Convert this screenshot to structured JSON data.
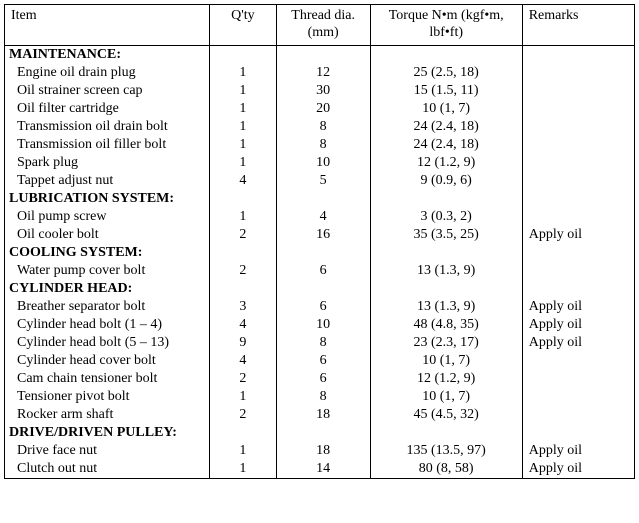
{
  "columns": {
    "item": "Item",
    "qty": "Q'ty",
    "thread": "Thread dia.\n(mm)",
    "torque": "Torque\nN•m (kgf•m, lbf•ft)",
    "remarks": "Remarks"
  },
  "sections": [
    {
      "title": "MAINTENANCE:",
      "rows": [
        {
          "item": "Engine oil drain plug",
          "qty": "1",
          "thread": "12",
          "torque": "25 (2.5, 18)",
          "remarks": ""
        },
        {
          "item": "Oil strainer screen cap",
          "qty": "1",
          "thread": "30",
          "torque": "15 (1.5, 11)",
          "remarks": ""
        },
        {
          "item": "Oil filter cartridge",
          "qty": "1",
          "thread": "20",
          "torque": "10 (1, 7)",
          "remarks": ""
        },
        {
          "item": "Transmission oil drain bolt",
          "qty": "1",
          "thread": "8",
          "torque": "24 (2.4, 18)",
          "remarks": ""
        },
        {
          "item": "Transmission oil filler bolt",
          "qty": "1",
          "thread": "8",
          "torque": "24 (2.4, 18)",
          "remarks": ""
        },
        {
          "item": "Spark plug",
          "qty": "1",
          "thread": "10",
          "torque": "12 (1.2, 9)",
          "remarks": ""
        },
        {
          "item": "Tappet adjust nut",
          "qty": "4",
          "thread": "5",
          "torque": "9 (0.9, 6)",
          "remarks": ""
        }
      ]
    },
    {
      "title": "LUBRICATION SYSTEM:",
      "rows": [
        {
          "item": "Oil pump screw",
          "qty": "1",
          "thread": "4",
          "torque": "3 (0.3, 2)",
          "remarks": ""
        },
        {
          "item": "Oil cooler bolt",
          "qty": "2",
          "thread": "16",
          "torque": "35 (3.5, 25)",
          "remarks": "Apply oil"
        }
      ]
    },
    {
      "title": "COOLING SYSTEM:",
      "rows": [
        {
          "item": "Water pump cover bolt",
          "qty": "2",
          "thread": "6",
          "torque": "13 (1.3, 9)",
          "remarks": ""
        }
      ]
    },
    {
      "title": "CYLINDER HEAD:",
      "rows": [
        {
          "item": "Breather separator bolt",
          "qty": "3",
          "thread": "6",
          "torque": "13 (1.3, 9)",
          "remarks": "Apply oil"
        },
        {
          "item": "Cylinder head bolt (1 – 4)",
          "qty": "4",
          "thread": "10",
          "torque": "48 (4.8, 35)",
          "remarks": "Apply oil"
        },
        {
          "item": "Cylinder head bolt (5 – 13)",
          "qty": "9",
          "thread": "8",
          "torque": "23 (2.3, 17)",
          "remarks": "Apply oil"
        },
        {
          "item": "Cylinder head cover bolt",
          "qty": "4",
          "thread": "6",
          "torque": "10 (1, 7)",
          "remarks": ""
        },
        {
          "item": "Cam chain tensioner bolt",
          "qty": "2",
          "thread": "6",
          "torque": "12 (1.2, 9)",
          "remarks": ""
        },
        {
          "item": "Tensioner pivot bolt",
          "qty": "1",
          "thread": "8",
          "torque": "10 (1, 7)",
          "remarks": ""
        },
        {
          "item": "Rocker arm shaft",
          "qty": "2",
          "thread": "18",
          "torque": "45 (4.5, 32)",
          "remarks": ""
        }
      ]
    },
    {
      "title": "DRIVE/DRIVEN PULLEY:",
      "rows": [
        {
          "item": "Drive face nut",
          "qty": "1",
          "thread": "18",
          "torque": "135 (13.5, 97)",
          "remarks": "Apply oil"
        },
        {
          "item": "Clutch out nut",
          "qty": "1",
          "thread": "14",
          "torque": "80 (8, 58)",
          "remarks": "Apply oil"
        }
      ]
    }
  ]
}
